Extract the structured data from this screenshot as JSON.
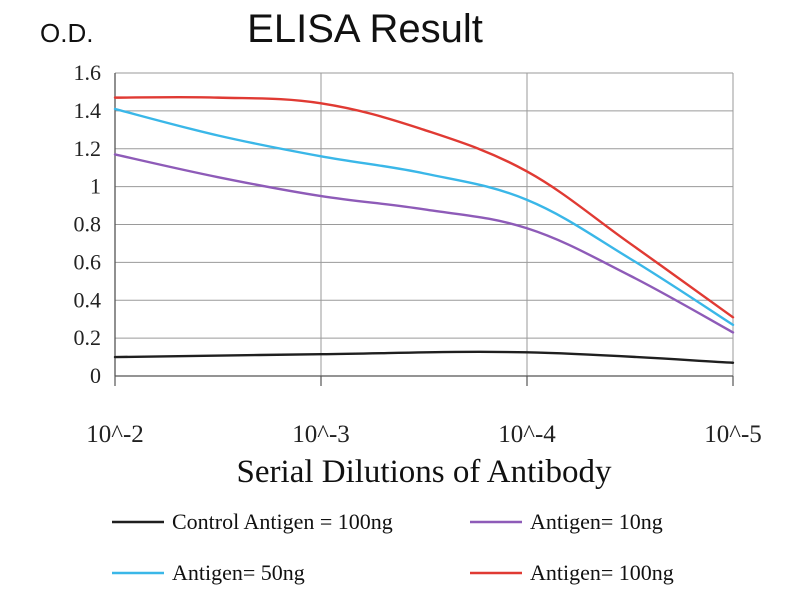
{
  "chart_data": {
    "type": "line",
    "title": "ELISA Result",
    "ylabel": "O.D.",
    "xlabel": "Serial Dilutions of Antibody",
    "x": [
      0,
      1,
      2,
      3
    ],
    "categories": [
      "10^-2",
      "10^-3",
      "10^-4",
      "10^-5"
    ],
    "ylim": [
      0,
      1.6
    ],
    "yticks": [
      "0",
      "0.2",
      "0.4",
      "0.6",
      "0.8",
      "1",
      "1.2",
      "1.4",
      "1.6"
    ],
    "grid": true,
    "legend_position": "bottom",
    "series": [
      {
        "name": "Control Antigen = 100ng",
        "color": "#1f1f1f",
        "points": [
          [
            0,
            0.1
          ],
          [
            1,
            0.115
          ],
          [
            2,
            0.125
          ],
          [
            3,
            0.07
          ]
        ]
      },
      {
        "name": "Antigen= 10ng",
        "color": "#8e5bb8",
        "points": [
          [
            0,
            1.17
          ],
          [
            0.5,
            1.05
          ],
          [
            1,
            0.95
          ],
          [
            1.5,
            0.88
          ],
          [
            2,
            0.78
          ],
          [
            2.5,
            0.53
          ],
          [
            3,
            0.23
          ]
        ]
      },
      {
        "name": "Antigen= 50ng",
        "color": "#3ab7e8",
        "points": [
          [
            0,
            1.41
          ],
          [
            0.5,
            1.27
          ],
          [
            1,
            1.16
          ],
          [
            1.5,
            1.07
          ],
          [
            2,
            0.93
          ],
          [
            2.5,
            0.62
          ],
          [
            3,
            0.27
          ]
        ]
      },
      {
        "name": "Antigen= 100ng",
        "color": "#e03a33",
        "points": [
          [
            0,
            1.47
          ],
          [
            0.5,
            1.47
          ],
          [
            1,
            1.44
          ],
          [
            1.5,
            1.3
          ],
          [
            2,
            1.08
          ],
          [
            2.5,
            0.7
          ],
          [
            3,
            0.31
          ]
        ]
      }
    ]
  }
}
